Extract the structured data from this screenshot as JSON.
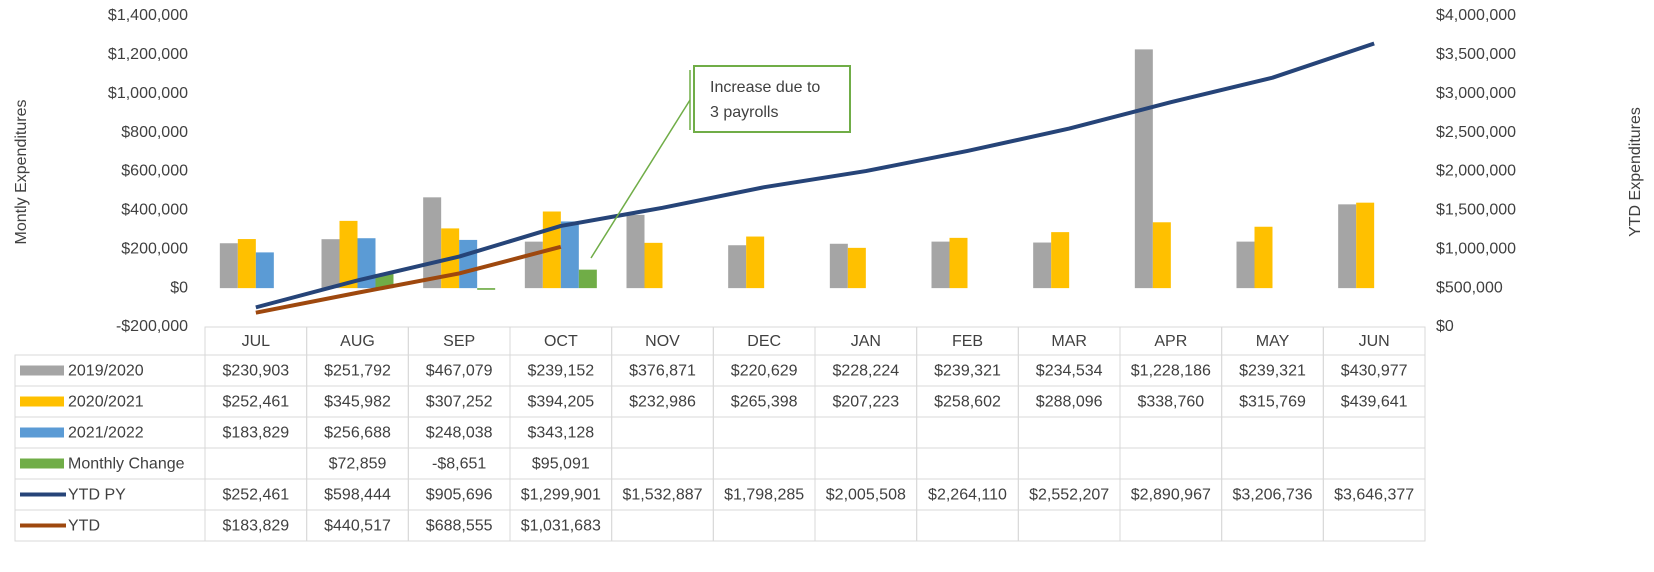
{
  "chart_data": {
    "type": "bar",
    "y_label": "Montly Expenditures",
    "y2_label": "YTD Expenditures",
    "categories": [
      "JUL",
      "AUG",
      "SEP",
      "OCT",
      "NOV",
      "DEC",
      "JAN",
      "FEB",
      "MAR",
      "APR",
      "MAY",
      "JUN"
    ],
    "ylim": [
      -200000,
      1400000
    ],
    "yticks": [
      {
        "value": -200000,
        "label": "-$200,000"
      },
      {
        "value": 0,
        "label": "$0"
      },
      {
        "value": 200000,
        "label": "$200,000"
      },
      {
        "value": 400000,
        "label": "$400,000"
      },
      {
        "value": 600000,
        "label": "$600,000"
      },
      {
        "value": 800000,
        "label": "$800,000"
      },
      {
        "value": 1000000,
        "label": "$1,000,000"
      },
      {
        "value": 1200000,
        "label": "$1,200,000"
      },
      {
        "value": 1400000,
        "label": "$1,400,000"
      }
    ],
    "y2lim": [
      0,
      4000000
    ],
    "y2ticks": [
      {
        "value": 0,
        "label": "$0"
      },
      {
        "value": 500000,
        "label": "$500,000"
      },
      {
        "value": 1000000,
        "label": "$1,000,000"
      },
      {
        "value": 1500000,
        "label": "$1,500,000"
      },
      {
        "value": 2000000,
        "label": "$2,000,000"
      },
      {
        "value": 2500000,
        "label": "$2,500,000"
      },
      {
        "value": 3000000,
        "label": "$3,000,000"
      },
      {
        "value": 3500000,
        "label": "$3,500,000"
      },
      {
        "value": 4000000,
        "label": "$4,000,000"
      }
    ],
    "grid": false,
    "series": [
      {
        "name": "2019/2020",
        "type": "bar",
        "color": "#a5a5a5",
        "values": [
          230903,
          251792,
          467079,
          239152,
          376871,
          220629,
          228224,
          239321,
          234534,
          1228186,
          239321,
          430977
        ],
        "value_labels": [
          "$230,903",
          "$251,792",
          "$467,079",
          "$239,152",
          "$376,871",
          "$220,629",
          "$228,224",
          "$239,321",
          "$234,534",
          "$1,228,186",
          "$239,321",
          "$430,977"
        ]
      },
      {
        "name": "2020/2021",
        "type": "bar",
        "color": "#ffc000",
        "values": [
          252461,
          345982,
          307252,
          394205,
          232986,
          265398,
          207223,
          258602,
          288096,
          338760,
          315769,
          439641
        ],
        "value_labels": [
          "$252,461",
          "$345,982",
          "$307,252",
          "$394,205",
          "$232,986",
          "$265,398",
          "$207,223",
          "$258,602",
          "$288,096",
          "$338,760",
          "$315,769",
          "$439,641"
        ]
      },
      {
        "name": "2021/2022",
        "type": "bar",
        "color": "#5b9bd5",
        "values": [
          183829,
          256688,
          248038,
          343128,
          null,
          null,
          null,
          null,
          null,
          null,
          null,
          null
        ],
        "value_labels": [
          "$183,829",
          "$256,688",
          "$248,038",
          "$343,128",
          null,
          null,
          null,
          null,
          null,
          null,
          null,
          null
        ]
      },
      {
        "name": "Monthly Change",
        "type": "bar",
        "color": "#70ad47",
        "values": [
          null,
          72859,
          -8651,
          95091,
          null,
          null,
          null,
          null,
          null,
          null,
          null,
          null
        ],
        "value_labels": [
          null,
          "$72,859",
          "-$8,651",
          "$95,091",
          null,
          null,
          null,
          null,
          null,
          null,
          null,
          null
        ]
      },
      {
        "name": "YTD PY",
        "type": "line",
        "axis": "y2",
        "color": "#264478",
        "values": [
          252461,
          598444,
          905696,
          1299901,
          1532887,
          1798285,
          2005508,
          2264110,
          2552207,
          2890967,
          3206736,
          3646377
        ],
        "value_labels": [
          "$252,461",
          "$598,444",
          "$905,696",
          "$1,299,901",
          "$1,532,887",
          "$1,798,285",
          "$2,005,508",
          "$2,264,110",
          "$2,552,207",
          "$2,890,967",
          "$3,206,736",
          "$3,646,377"
        ]
      },
      {
        "name": "YTD",
        "type": "line",
        "axis": "y2",
        "color": "#9e480e",
        "values": [
          183829,
          440517,
          688555,
          1031683,
          null,
          null,
          null,
          null,
          null,
          null,
          null,
          null
        ],
        "value_labels": [
          "$183,829",
          "$440,517",
          "$688,555",
          "$1,031,683",
          null,
          null,
          null,
          null,
          null,
          null,
          null,
          null
        ]
      }
    ],
    "annotation": {
      "lines": [
        "Increase due to",
        "3 payrolls"
      ]
    }
  }
}
